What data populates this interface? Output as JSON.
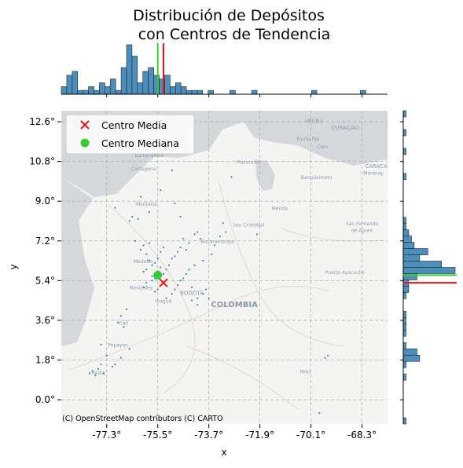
{
  "chart_data": {
    "type": "scatter",
    "title_line1": "Distribución de Depósitos",
    "title_line2": "con Centros de Tendencia",
    "xlabel": "x",
    "ylabel": "y",
    "xlim": [
      -78.9,
      -67.4
    ],
    "ylim": [
      -1.1,
      13.1
    ],
    "x_ticks": [
      -77.3,
      -75.5,
      -73.7,
      -71.9,
      -70.1,
      -68.3
    ],
    "x_tick_labels": [
      "-77.3°",
      "-75.5°",
      "-73.7°",
      "-71.9°",
      "-70.1°",
      "-68.3°"
    ],
    "y_ticks": [
      0.0,
      1.8,
      3.6,
      5.4,
      7.2,
      9.0,
      10.8,
      12.6
    ],
    "y_tick_labels": [
      "0.0°",
      "1.8°",
      "3.6°",
      "5.4°",
      "7.2°",
      "9.0°",
      "10.8°",
      "12.6°"
    ],
    "grid": true,
    "legend_position": "top-left",
    "centers": [
      {
        "name": "Centro Media",
        "marker": "x",
        "color": "#ee1111",
        "x": -75.3,
        "y": 5.3
      },
      {
        "name": "Centro Mediana",
        "marker": "circle",
        "color": "#33cc33",
        "x": -75.5,
        "y": 5.65
      }
    ],
    "points_color": "#1f77b4",
    "points": [
      [
        -76.0,
        5.8
      ],
      [
        -75.9,
        5.9
      ],
      [
        -75.7,
        6.1
      ],
      [
        -75.6,
        6.2
      ],
      [
        -75.5,
        6.4
      ],
      [
        -75.8,
        6.3
      ],
      [
        -75.4,
        6.0
      ],
      [
        -75.3,
        5.7
      ],
      [
        -75.6,
        5.5
      ],
      [
        -75.7,
        5.4
      ],
      [
        -75.2,
        5.9
      ],
      [
        -75.1,
        6.1
      ],
      [
        -75.0,
        6.4
      ],
      [
        -74.8,
        6.7
      ],
      [
        -74.7,
        6.9
      ],
      [
        -74.9,
        6.5
      ],
      [
        -75.9,
        6.6
      ],
      [
        -76.1,
        6.8
      ],
      [
        -76.0,
        7.0
      ],
      [
        -75.8,
        7.1
      ],
      [
        -76.3,
        7.2
      ],
      [
        -75.4,
        6.7
      ],
      [
        -75.3,
        6.9
      ],
      [
        -74.6,
        7.3
      ],
      [
        -74.4,
        7.1
      ],
      [
        -74.5,
        6.8
      ],
      [
        -74.2,
        7.5
      ],
      [
        -74.0,
        7.3
      ],
      [
        -74.1,
        7.6
      ],
      [
        -74.6,
        5.5
      ],
      [
        -74.5,
        5.7
      ],
      [
        -74.4,
        5.9
      ],
      [
        -74.8,
        5.2
      ],
      [
        -74.9,
        5.0
      ],
      [
        -75.0,
        4.8
      ],
      [
        -75.2,
        4.6
      ],
      [
        -75.5,
        5.0
      ],
      [
        -75.6,
        4.9
      ],
      [
        -74.7,
        5.4
      ],
      [
        -74.3,
        5.1
      ],
      [
        -75.9,
        5.3
      ],
      [
        -76.0,
        5.1
      ],
      [
        -75.7,
        5.6
      ],
      [
        -75.5,
        5.8
      ],
      [
        -74.2,
        6.1
      ],
      [
        -73.9,
        6.3
      ],
      [
        -73.6,
        6.6
      ],
      [
        -73.5,
        7.0
      ],
      [
        -73.3,
        7.4
      ],
      [
        -73.1,
        7.6
      ],
      [
        -73.9,
        4.8
      ],
      [
        -73.7,
        4.6
      ],
      [
        -74.1,
        4.3
      ],
      [
        -76.5,
        8.1
      ],
      [
        -76.4,
        8.3
      ],
      [
        -76.2,
        8.2
      ],
      [
        -75.8,
        8.5
      ],
      [
        -74.9,
        8.9
      ],
      [
        -74.7,
        8.3
      ],
      [
        -76.6,
        4.1
      ],
      [
        -76.8,
        3.8
      ],
      [
        -76.7,
        3.3
      ],
      [
        -76.9,
        3.5
      ],
      [
        -77.5,
        2.5
      ],
      [
        -77.3,
        2.0
      ],
      [
        -77.0,
        1.6
      ],
      [
        -77.6,
        1.4
      ],
      [
        -77.8,
        1.3
      ],
      [
        -77.4,
        1.2
      ],
      [
        -77.1,
        1.5
      ],
      [
        -77.7,
        1.1
      ],
      [
        -76.8,
        1.9
      ],
      [
        -76.5,
        2.3
      ],
      [
        -77.9,
        1.2
      ],
      [
        -77.5,
        1.6
      ],
      [
        -69.5,
        2.0
      ],
      [
        -69.6,
        1.9
      ],
      [
        -69.8,
        -0.6
      ],
      [
        -77.0,
        8.7
      ],
      [
        -74.1,
        4.6
      ],
      [
        -74.3,
        4.5
      ],
      [
        -73.8,
        5.0
      ],
      [
        -72.0,
        7.5
      ],
      [
        -73.2,
        8.0
      ],
      [
        -75.0,
        10.4
      ],
      [
        -72.9,
        10.1
      ],
      [
        -76.1,
        9.2
      ],
      [
        -75.4,
        9.5
      ]
    ],
    "top_histogram": {
      "bins": 60,
      "color": "#4c8fbd",
      "counts": [
        2,
        5,
        6,
        1,
        1,
        2,
        1,
        3,
        2,
        4,
        1,
        7,
        13,
        10,
        3,
        6,
        7,
        5,
        4,
        5,
        2,
        3,
        2,
        1,
        1,
        1,
        0,
        1,
        0,
        0,
        0,
        1,
        0,
        0,
        0,
        1,
        0,
        0,
        0,
        0,
        0,
        0,
        0,
        0,
        0,
        0,
        1,
        0,
        0,
        0,
        0,
        0,
        0,
        0,
        0,
        1,
        0,
        0,
        0,
        0
      ]
    },
    "right_histogram": {
      "bins": 50,
      "color": "#4c8fbd",
      "counts": [
        1,
        0,
        0,
        0,
        0,
        0,
        0,
        1,
        0,
        1,
        6,
        5,
        1,
        0,
        1,
        1,
        1,
        1,
        0,
        0,
        1,
        2,
        2,
        5,
        19,
        14,
        6,
        9,
        4,
        3,
        2,
        1,
        1,
        0,
        0,
        0,
        0,
        0,
        0,
        1,
        0,
        0,
        0,
        1,
        0,
        0,
        1,
        0,
        0,
        1
      ]
    },
    "map_attribution": "(C) OpenStreetMap contributors (C) CARTO",
    "map_labels": [
      {
        "text": "ARUBA",
        "lon": -70.0,
        "lat": 12.55,
        "weight": "normal",
        "size": 7
      },
      {
        "text": "CURAÇAO",
        "lon": -68.9,
        "lat": 12.25,
        "weight": "normal",
        "size": 7
      },
      {
        "text": "Punto Fijo",
        "lon": -70.2,
        "lat": 11.75,
        "weight": "normal",
        "size": 6
      },
      {
        "text": "Coro",
        "lon": -69.7,
        "lat": 11.4,
        "weight": "normal",
        "size": 6
      },
      {
        "text": "CARACA",
        "lon": -67.8,
        "lat": 10.5,
        "weight": "normal",
        "size": 7
      },
      {
        "text": "Maracay",
        "lon": -67.9,
        "lat": 10.2,
        "weight": "normal",
        "size": 6
      },
      {
        "text": "Barranquilla",
        "lon": -75.8,
        "lat": 11.0,
        "weight": "normal",
        "size": 6
      },
      {
        "text": "Cartagena",
        "lon": -76.0,
        "lat": 10.4,
        "weight": "normal",
        "size": 6
      },
      {
        "text": "Maracaibo",
        "lon": -72.3,
        "lat": 10.7,
        "weight": "normal",
        "size": 6
      },
      {
        "text": "Barquisimeto",
        "lon": -69.9,
        "lat": 10.0,
        "weight": "normal",
        "size": 6
      },
      {
        "text": "Montería",
        "lon": -75.9,
        "lat": 8.8,
        "weight": "normal",
        "size": 6
      },
      {
        "text": "Mérida",
        "lon": -71.2,
        "lat": 8.6,
        "weight": "normal",
        "size": 6
      },
      {
        "text": "San Cristóbal",
        "lon": -72.3,
        "lat": 7.85,
        "weight": "normal",
        "size": 6
      },
      {
        "text": "Bucaramanga",
        "lon": -73.4,
        "lat": 7.1,
        "weight": "normal",
        "size": 6
      },
      {
        "text": "San Fernando",
        "lon": -68.3,
        "lat": 7.9,
        "weight": "normal",
        "size": 6
      },
      {
        "text": "de Apure",
        "lon": -68.3,
        "lat": 7.6,
        "weight": "normal",
        "size": 6
      },
      {
        "text": "Medellín",
        "lon": -76.0,
        "lat": 6.2,
        "weight": "normal",
        "size": 6
      },
      {
        "text": "Manizales",
        "lon": -76.1,
        "lat": 5.0,
        "weight": "normal",
        "size": 6
      },
      {
        "text": "Ibagué",
        "lon": -75.3,
        "lat": 4.4,
        "weight": "normal",
        "size": 6
      },
      {
        "text": "BOGOTÁ",
        "lon": -74.3,
        "lat": 4.75,
        "weight": "normal",
        "size": 7
      },
      {
        "text": "Puerto Ayacucho",
        "lon": -68.9,
        "lat": 5.7,
        "weight": "normal",
        "size": 6
      },
      {
        "text": "COLOMBIA",
        "lon": -72.8,
        "lat": 4.2,
        "weight": "bold",
        "size": 10
      },
      {
        "text": "Cali",
        "lon": -76.7,
        "lat": 3.4,
        "weight": "normal",
        "size": 6
      },
      {
        "text": "Popayán",
        "lon": -76.9,
        "lat": 2.4,
        "weight": "normal",
        "size": 6
      },
      {
        "text": "Pasto",
        "lon": -77.6,
        "lat": 1.15,
        "weight": "normal",
        "size": 6
      },
      {
        "text": "Mitú",
        "lon": -70.3,
        "lat": 1.2,
        "weight": "normal",
        "size": 6
      }
    ]
  }
}
